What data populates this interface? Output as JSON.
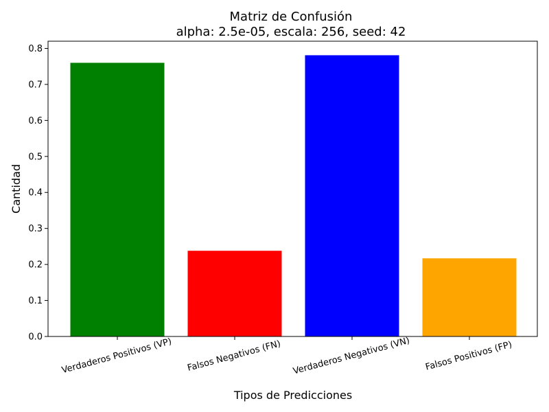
{
  "chart_data": {
    "type": "bar",
    "title": "Matriz de Confusión",
    "subtitle": "alpha: 2.5e-05, escala: 256, seed: 42",
    "xlabel": "Tipos de Predicciones",
    "ylabel": "Cantidad",
    "categories": [
      "Verdaderos Positivos (VP)",
      "Falsos Negativos (FN)",
      "Verdaderos Negativos (VN)",
      "Falsos Positivos (FP)"
    ],
    "values": [
      0.76,
      0.238,
      0.781,
      0.217
    ],
    "colors": [
      "#008000",
      "#ff0000",
      "#0000ff",
      "#ffa500"
    ],
    "ylim": [
      0,
      0.82
    ],
    "yticks": [
      "0.0",
      "0.1",
      "0.2",
      "0.3",
      "0.4",
      "0.5",
      "0.6",
      "0.7",
      "0.8"
    ],
    "grid": false,
    "legend": "none"
  }
}
